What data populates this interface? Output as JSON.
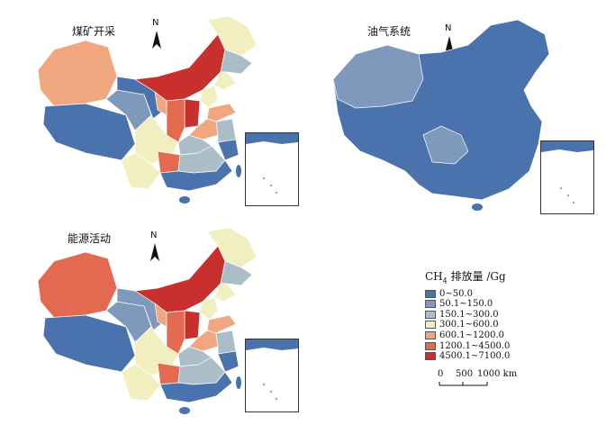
{
  "panels": [
    {
      "title": "煤矿开采"
    },
    {
      "title": "油气系统"
    },
    {
      "title": "能源活动"
    }
  ],
  "north_label": "N",
  "legend": {
    "title_pre": "CH",
    "title_sub": "4",
    "title_post": " 排放量 /Gg",
    "classes": [
      {
        "label": "0~50.0",
        "color": "#4a72ad"
      },
      {
        "label": "50.1~150.0",
        "color": "#7f99bd"
      },
      {
        "label": "150.1~300.0",
        "color": "#abbdc7"
      },
      {
        "label": "300.1~600.0",
        "color": "#f1efc0"
      },
      {
        "label": "600.1~1200.0",
        "color": "#f0a67e"
      },
      {
        "label": "1200.1~4500.0",
        "color": "#e36a50"
      },
      {
        "label": "4500.1~7100.0",
        "color": "#c8302d"
      }
    ]
  },
  "scale": {
    "t0": "0",
    "t1": "500",
    "t2": "1000 km"
  }
}
